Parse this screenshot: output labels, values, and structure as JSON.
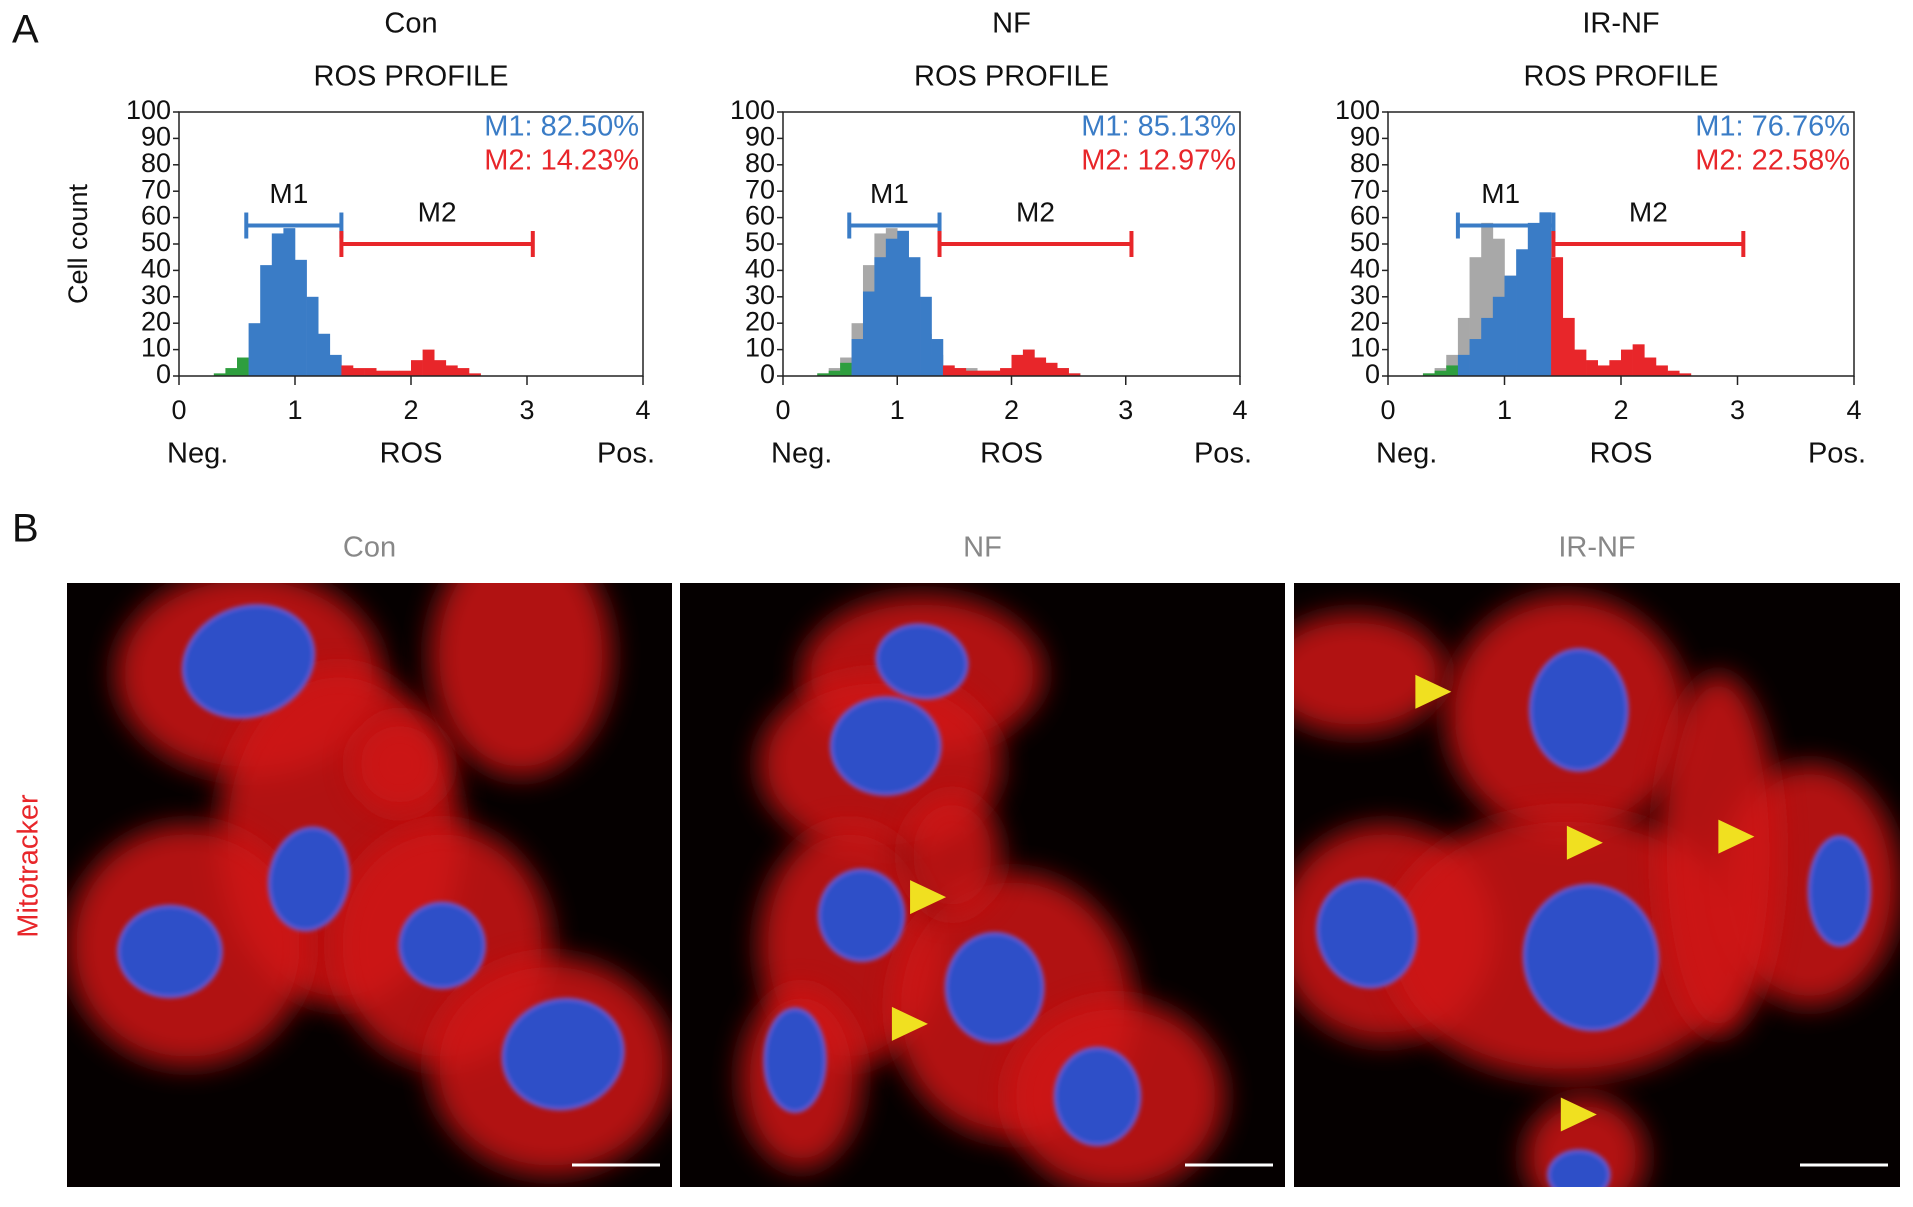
{
  "panel_labels": [
    "A",
    "B"
  ],
  "chart_data": [
    {
      "type": "histogram",
      "title": "Con",
      "subtitle": "ROS PROFILE",
      "ylabel": "Cell count",
      "xlabel": "ROS",
      "xlabel_left": "Neg.",
      "xlabel_right": "Pos.",
      "xlim": [
        0,
        4
      ],
      "xticks": [
        0,
        1,
        2,
        3,
        4
      ],
      "ylim": [
        0,
        100
      ],
      "yticks": [
        0,
        10,
        20,
        30,
        40,
        50,
        60,
        70,
        80,
        90,
        100
      ],
      "bins": [
        0.2,
        0.3,
        0.4,
        0.5,
        0.6,
        0.7,
        0.8,
        0.9,
        1.0,
        1.1,
        1.2,
        1.3,
        1.4,
        1.5,
        1.6,
        1.7,
        1.8,
        1.9,
        2.0,
        2.1,
        2.2,
        2.3,
        2.4,
        2.5,
        2.6
      ],
      "counts": [
        0,
        1,
        3,
        7,
        20,
        42,
        54,
        56,
        44,
        30,
        16,
        8,
        4,
        3,
        3,
        2,
        2,
        2,
        6,
        10,
        6,
        4,
        3,
        1
      ],
      "below_color": "#2e9e3e",
      "gates": [
        {
          "name": "M1",
          "range": [
            0.58,
            1.4
          ],
          "color": "#3a7cc6",
          "percent": 82.5,
          "percent_label": "M1: 82.50%"
        },
        {
          "name": "M2",
          "range": [
            1.4,
            3.05
          ],
          "color": "#e8262a",
          "percent": 14.23,
          "percent_label": "M2: 14.23%"
        }
      ]
    },
    {
      "type": "histogram",
      "title": "NF",
      "subtitle": "ROS PROFILE",
      "xlabel": "ROS",
      "xlabel_left": "Neg.",
      "xlabel_right": "Pos.",
      "xlim": [
        0,
        4
      ],
      "xticks": [
        0,
        1,
        2,
        3,
        4
      ],
      "ylim": [
        0,
        100
      ],
      "yticks": [
        0,
        10,
        20,
        30,
        40,
        50,
        60,
        70,
        80,
        90,
        100
      ],
      "bins": [
        0.2,
        0.3,
        0.4,
        0.5,
        0.6,
        0.7,
        0.8,
        0.9,
        1.0,
        1.1,
        1.2,
        1.3,
        1.4,
        1.5,
        1.6,
        1.7,
        1.8,
        1.9,
        2.0,
        2.1,
        2.2,
        2.3,
        2.4,
        2.5,
        2.6
      ],
      "counts": [
        0,
        1,
        2,
        5,
        14,
        32,
        45,
        52,
        55,
        45,
        30,
        14,
        4,
        3,
        2,
        2,
        2,
        3,
        8,
        10,
        7,
        5,
        3,
        1
      ],
      "reference_counts": [
        0,
        1,
        3,
        7,
        20,
        42,
        54,
        56,
        44,
        30,
        16,
        8,
        4,
        3,
        3,
        2,
        2,
        2,
        6,
        10,
        6,
        4,
        3,
        1
      ],
      "reference_color": "#a8a8a8",
      "below_color": "#2e9e3e",
      "gates": [
        {
          "name": "M1",
          "range": [
            0.58,
            1.37
          ],
          "color": "#3a7cc6",
          "percent": 85.13,
          "percent_label": "M1: 85.13%"
        },
        {
          "name": "M2",
          "range": [
            1.37,
            3.05
          ],
          "color": "#e8262a",
          "percent": 12.97,
          "percent_label": "M2: 12.97%"
        }
      ]
    },
    {
      "type": "histogram",
      "title": "IR-NF",
      "subtitle": "ROS PROFILE",
      "xlabel": "ROS",
      "xlabel_left": "Neg.",
      "xlabel_right": "Pos.",
      "xlim": [
        0,
        4
      ],
      "xticks": [
        0,
        1,
        2,
        3,
        4
      ],
      "ylim": [
        0,
        100
      ],
      "yticks": [
        0,
        10,
        20,
        30,
        40,
        50,
        60,
        70,
        80,
        90,
        100
      ],
      "bins": [
        0.2,
        0.3,
        0.4,
        0.5,
        0.6,
        0.7,
        0.8,
        0.9,
        1.0,
        1.1,
        1.2,
        1.3,
        1.4,
        1.5,
        1.6,
        1.7,
        1.8,
        1.9,
        2.0,
        2.1,
        2.2,
        2.3,
        2.4,
        2.5,
        2.6
      ],
      "counts": [
        0,
        1,
        2,
        4,
        8,
        14,
        22,
        30,
        38,
        48,
        58,
        62,
        45,
        22,
        10,
        6,
        4,
        6,
        10,
        12,
        7,
        4,
        2,
        1
      ],
      "reference_counts": [
        0,
        1,
        3,
        8,
        22,
        45,
        58,
        52,
        38,
        22,
        12,
        5,
        2,
        1,
        1,
        0,
        0,
        0,
        0,
        0,
        0,
        0,
        0,
        0
      ],
      "reference_color": "#a8a8a8",
      "below_color": "#2e9e3e",
      "gates": [
        {
          "name": "M1",
          "range": [
            0.6,
            1.42
          ],
          "color": "#3a7cc6",
          "percent": 76.76,
          "percent_label": "M1: 76.76%"
        },
        {
          "name": "M2",
          "range": [
            1.42,
            3.05
          ],
          "color": "#e8262a",
          "percent": 22.58,
          "percent_label": "M2: 22.58%"
        }
      ]
    }
  ],
  "micrographs": {
    "stain_label": "Mitotracker",
    "panels": [
      {
        "title": "Con"
      },
      {
        "title": "NF"
      },
      {
        "title": "IR-NF"
      }
    ]
  }
}
